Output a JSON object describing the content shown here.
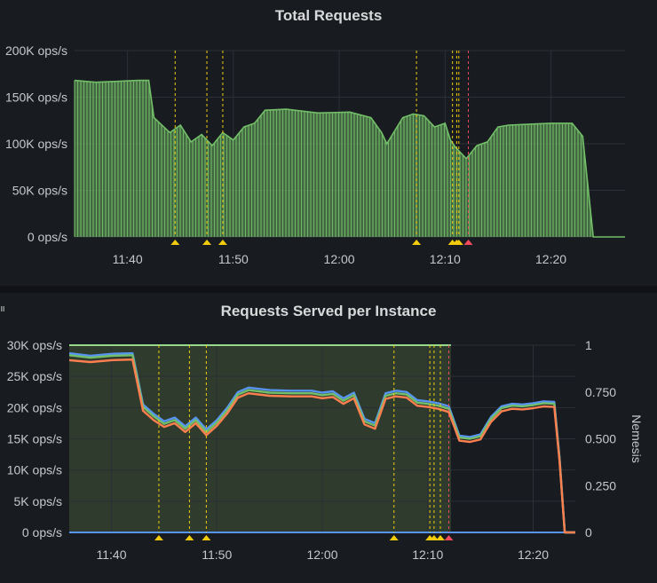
{
  "panels": [
    {
      "title": "Total Requests",
      "chart_data": {
        "type": "area",
        "title": "Total Requests",
        "xlabel": "",
        "ylabel": "",
        "y_unit": "ops/s",
        "ylim": [
          0,
          200000
        ],
        "y_ticks": [
          "0 ops/s",
          "50K ops/s",
          "100K ops/s",
          "150K ops/s",
          "200K ops/s"
        ],
        "x_ticks": [
          "11:40",
          "11:50",
          "12:00",
          "12:10",
          "12:20"
        ],
        "xlim": [
          "11:35",
          "12:27"
        ],
        "grid": true,
        "series": [
          {
            "color": "#73bf69",
            "x": [
              "11:35",
              "11:37",
              "11:39",
              "11:41",
              "11:42",
              "11:42.5",
              "11:44",
              "11:45",
              "11:46",
              "11:47",
              "11:48",
              "11:49",
              "11:50",
              "11:51",
              "11:52",
              "11:53",
              "11:55",
              "11:58",
              "12:01",
              "12:03",
              "12:04",
              "12:04.5",
              "12:06",
              "12:07",
              "12:08",
              "12:09",
              "12:10",
              "12:10.5",
              "12:11",
              "12:12",
              "12:13",
              "12:14",
              "12:15",
              "12:16",
              "12:18",
              "12:20",
              "12:22",
              "12:23",
              "12:24",
              "12:27"
            ],
            "y": [
              168000,
              166000,
              167000,
              168000,
              168000,
              128000,
              112000,
              120000,
              102000,
              110000,
              98000,
              112000,
              104000,
              118000,
              122000,
              136000,
              137000,
              133000,
              134000,
              128000,
              112000,
              100000,
              128000,
              132000,
              130000,
              118000,
              122000,
              104000,
              96000,
              84000,
              98000,
              102000,
              118000,
              120000,
              121000,
              122000,
              122000,
              108000,
              0,
              0
            ]
          }
        ],
        "annotations": [
          {
            "x": "11:44.5",
            "color": "#f2cc0c"
          },
          {
            "x": "11:47.5",
            "color": "#f2cc0c"
          },
          {
            "x": "11:49",
            "color": "#f2cc0c"
          },
          {
            "x": "12:07.3",
            "color": "#f2cc0c"
          },
          {
            "x": "12:10.7",
            "color": "#f2cc0c"
          },
          {
            "x": "12:11.1",
            "color": "#f2cc0c"
          },
          {
            "x": "12:11.3",
            "color": "#f2cc0c"
          },
          {
            "x": "12:12.2",
            "color": "#f2495c"
          }
        ]
      }
    },
    {
      "title": "Requests Served per Instance",
      "chart_data": {
        "type": "line",
        "title": "Requests Served per Instance",
        "xlabel": "",
        "ylabel": "",
        "y2label": "Nemesis",
        "y_unit": "ops/s",
        "ylim": [
          0,
          30000
        ],
        "y2lim": [
          0,
          1
        ],
        "y_ticks": [
          "0 ops/s",
          "5K ops/s",
          "10K ops/s",
          "15K ops/s",
          "20K ops/s",
          "25K ops/s",
          "30K ops/s"
        ],
        "y2_ticks": [
          "0",
          "0.250",
          "0.500",
          "0.750",
          "1"
        ],
        "x_ticks": [
          "11:40",
          "11:50",
          "12:00",
          "12:10",
          "12:20"
        ],
        "xlim": [
          "11:36",
          "12:24"
        ],
        "grid": true,
        "nemesis_active": {
          "from": "11:36",
          "to": "12:12.2",
          "value": 1
        },
        "series": [
          {
            "color": "#5794f2",
            "x": [
              "11:36",
              "11:38",
              "11:40",
              "11:42",
              "11:43",
              "11:44",
              "11:45",
              "11:46",
              "11:47",
              "11:48",
              "11:49",
              "11:50",
              "11:51",
              "11:52",
              "11:53",
              "11:55",
              "11:57",
              "11:59",
              "12:00",
              "12:01",
              "12:02",
              "12:03",
              "12:04",
              "12:05",
              "12:06",
              "12:07",
              "12:08",
              "12:09",
              "12:10",
              "12:11",
              "12:12",
              "12:13",
              "12:14",
              "12:15",
              "12:16",
              "12:17",
              "12:18",
              "12:19",
              "12:20",
              "12:21",
              "12:22",
              "12:22.5",
              "12:23",
              "12:24"
            ],
            "y": [
              28700,
              28300,
              28600,
              28700,
              20500,
              19000,
              17800,
              18400,
              17000,
              18400,
              16500,
              18000,
              20000,
              22500,
              23200,
              22800,
              22700,
              22700,
              22400,
              22600,
              21500,
              22400,
              18200,
              17500,
              22300,
              22700,
              22500,
              21200,
              21000,
              20700,
              20200,
              15500,
              15300,
              15700,
              18500,
              20200,
              20600,
              20500,
              20700,
              21000,
              20900,
              12000,
              0,
              0
            ]
          },
          {
            "color": "#73bf69",
            "x": [
              "11:36",
              "11:38",
              "11:40",
              "11:42",
              "11:43",
              "11:44",
              "11:45",
              "11:46",
              "11:47",
              "11:48",
              "11:49",
              "11:50",
              "11:51",
              "11:52",
              "11:53",
              "11:55",
              "11:57",
              "11:59",
              "12:00",
              "12:01",
              "12:02",
              "12:03",
              "12:04",
              "12:05",
              "12:06",
              "12:07",
              "12:08",
              "12:09",
              "12:10",
              "12:11",
              "12:12",
              "12:13",
              "12:14",
              "12:15",
              "12:16",
              "12:17",
              "12:18",
              "12:19",
              "12:20",
              "12:21",
              "12:22",
              "12:22.5",
              "12:23",
              "12:24"
            ],
            "y": [
              28400,
              28000,
              28300,
              28400,
              20100,
              18600,
              17400,
              18000,
              16600,
              18000,
              16100,
              17600,
              19600,
              22100,
              22800,
              22400,
              22300,
              22300,
              22000,
              22200,
              21100,
              22000,
              17800,
              17100,
              21900,
              22300,
              22100,
              20800,
              20600,
              20300,
              19800,
              15200,
              15000,
              15400,
              18200,
              19900,
              20300,
              20200,
              20400,
              20700,
              20600,
              11800,
              0,
              0
            ]
          },
          {
            "color": "#ff7f50",
            "x": [
              "11:36",
              "11:38",
              "11:40",
              "11:42",
              "11:43",
              "11:44",
              "11:45",
              "11:46",
              "11:47",
              "11:48",
              "11:49",
              "11:50",
              "11:51",
              "11:52",
              "11:53",
              "11:55",
              "11:57",
              "11:59",
              "12:00",
              "12:01",
              "12:02",
              "12:03",
              "12:04",
              "12:05",
              "12:06",
              "12:07",
              "12:08",
              "12:09",
              "12:10",
              "12:11",
              "12:12",
              "12:13",
              "12:14",
              "12:15",
              "12:16",
              "12:17",
              "12:18",
              "12:19",
              "12:20",
              "12:21",
              "12:22",
              "12:22.5",
              "12:23",
              "12:24"
            ],
            "y": [
              27600,
              27300,
              27600,
              27700,
              19500,
              18000,
              16900,
              17500,
              16100,
              17500,
              15600,
              17100,
              19100,
              21600,
              22300,
              21900,
              21800,
              21800,
              21500,
              21700,
              20600,
              21500,
              17300,
              16600,
              21400,
              21800,
              21600,
              20300,
              20100,
              19800,
              19300,
              14700,
              14500,
              14900,
              17700,
              19400,
              19800,
              19700,
              19900,
              20200,
              20100,
              11500,
              0,
              0
            ]
          }
        ],
        "annotations": [
          {
            "x": "11:44.5",
            "color": "#f2cc0c"
          },
          {
            "x": "11:47.4",
            "color": "#f2cc0c"
          },
          {
            "x": "11:49",
            "color": "#f2cc0c"
          },
          {
            "x": "12:06.8",
            "color": "#f2cc0c"
          },
          {
            "x": "12:10.2",
            "color": "#f2cc0c"
          },
          {
            "x": "12:10.6",
            "color": "#f2cc0c"
          },
          {
            "x": "12:11.2",
            "color": "#f2cc0c"
          },
          {
            "x": "12:12",
            "color": "#f2495c"
          }
        ]
      }
    }
  ]
}
